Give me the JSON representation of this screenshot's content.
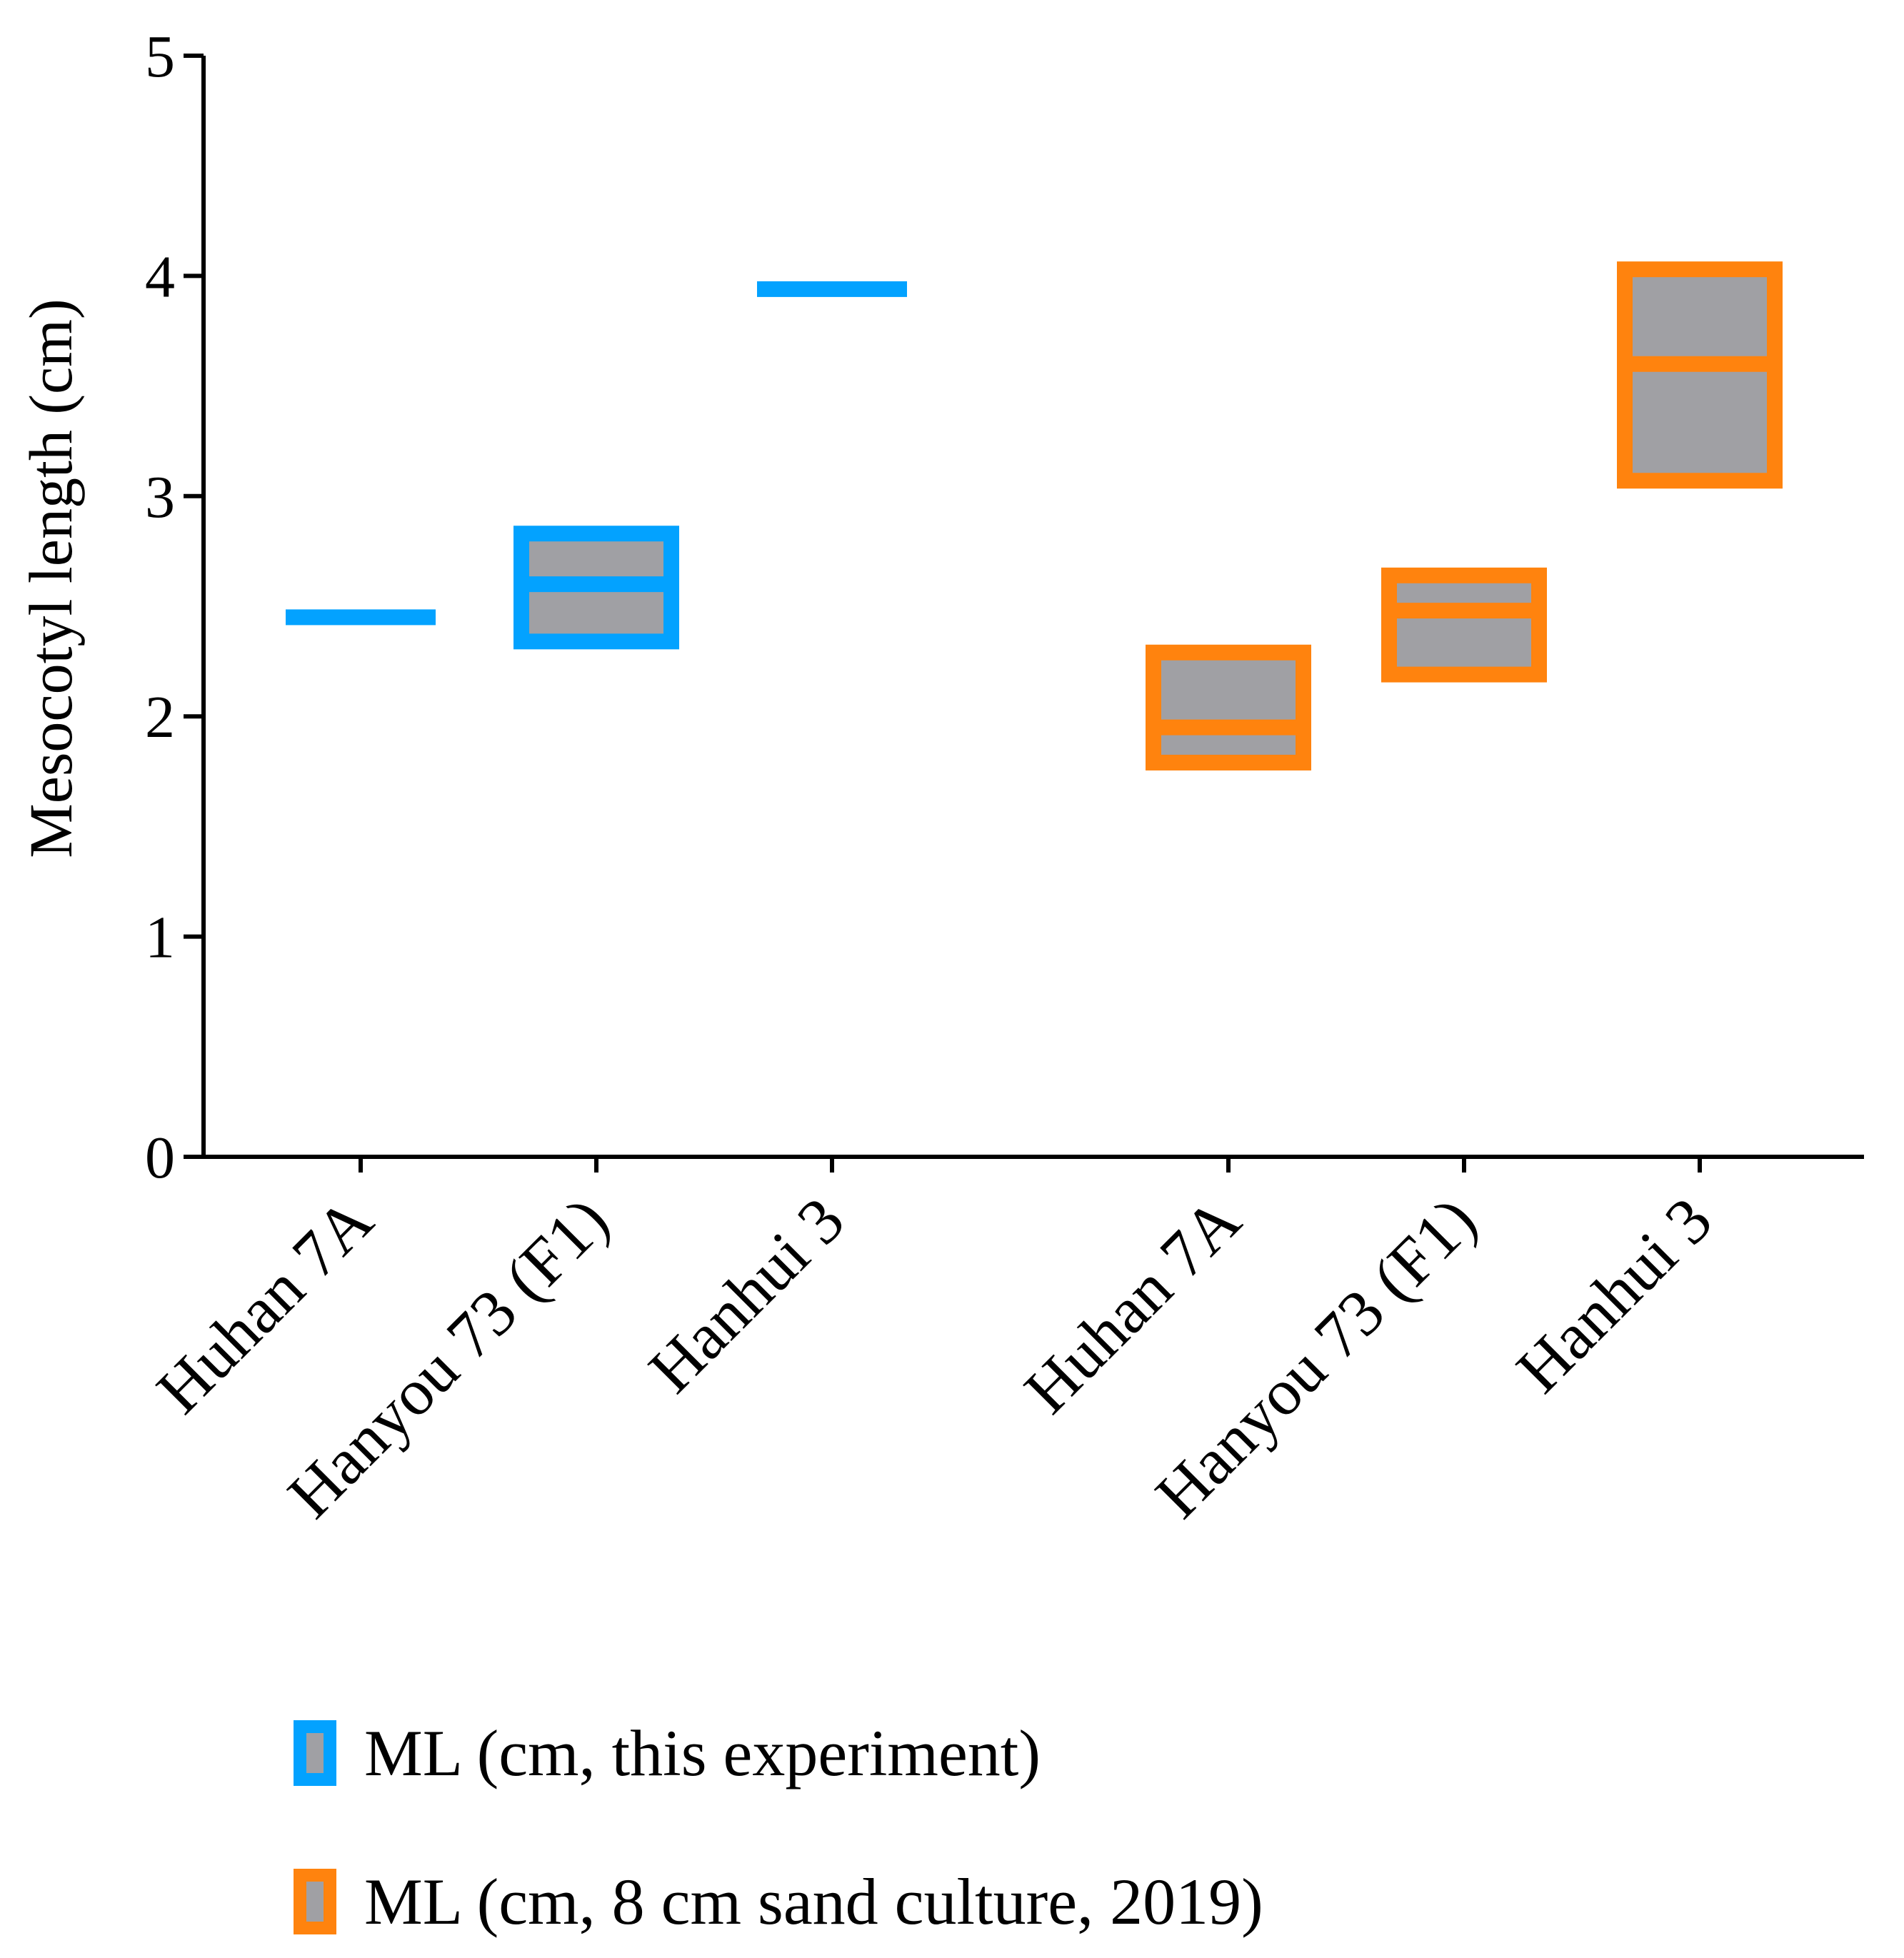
{
  "chart_data": {
    "type": "floating-bar",
    "title": "",
    "xlabel": "",
    "ylabel": "Mesocotyl length (cm)",
    "ylim": [
      0,
      5
    ],
    "yticks": [
      0,
      1,
      2,
      3,
      4,
      5
    ],
    "yticks_labels": [
      "0",
      "1",
      "2",
      "3",
      "4",
      "5"
    ],
    "grid": false,
    "legend_position": "bottom-left",
    "series": [
      {
        "name": "ML (cm, this experiment)",
        "color": "#03A2FF",
        "fill": "#A0A0A4",
        "points": [
          {
            "category": "Huhan 7A",
            "min": 2.41,
            "max": 2.49,
            "mean": 2.45
          },
          {
            "category": "Hanyou 73 (F1)",
            "min": 2.34,
            "max": 2.83,
            "mean": 2.6
          },
          {
            "category": "Hanhui 3",
            "min": 3.92,
            "max": 3.96,
            "mean": 3.94
          }
        ]
      },
      {
        "name": "ML (cm, 8 cm sand culture,  2019)",
        "color": "#FF830E",
        "fill": "#A0A0A4",
        "points": [
          {
            "category": "Huhan 7A",
            "min": 1.79,
            "max": 2.29,
            "mean": 1.95
          },
          {
            "category": "Hanyou 73 (F1)",
            "min": 2.19,
            "max": 2.64,
            "mean": 2.48
          },
          {
            "category": "Hanhui 3",
            "min": 3.07,
            "max": 4.03,
            "mean": 3.6
          }
        ]
      }
    ]
  }
}
